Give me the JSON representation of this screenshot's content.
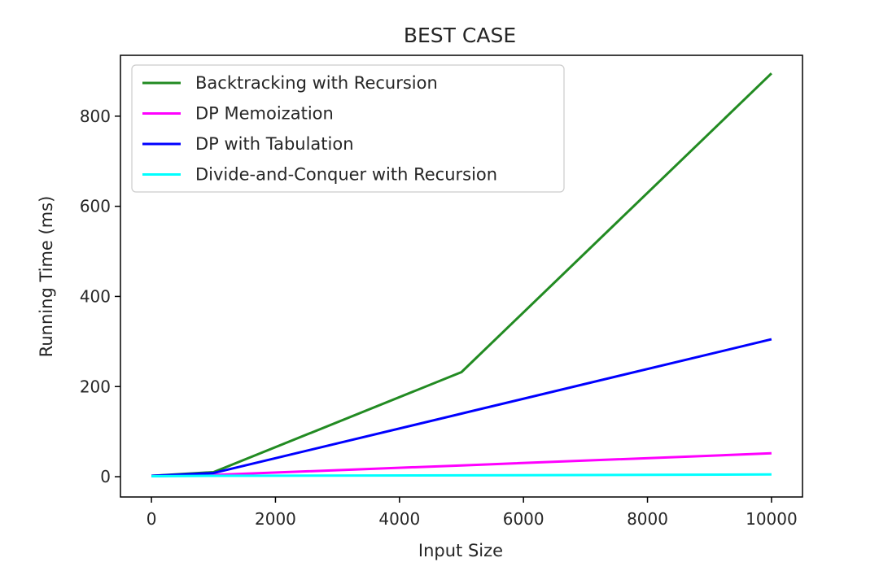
{
  "chart_data": {
    "type": "line",
    "title": "BEST CASE",
    "xlabel": "Input Size",
    "ylabel": "Running Time (ms)",
    "xlim": [
      -500,
      10500
    ],
    "ylim": [
      -45,
      935
    ],
    "xticks": [
      0,
      2000,
      4000,
      6000,
      8000,
      10000
    ],
    "xtick_labels": [
      "0",
      "2000",
      "4000",
      "6000",
      "8000",
      "10000"
    ],
    "yticks": [
      0,
      200,
      400,
      600,
      800
    ],
    "ytick_labels": [
      "0",
      "200",
      "400",
      "600",
      "800"
    ],
    "grid": false,
    "legend_position": "top-left",
    "series": [
      {
        "name": "Backtracking with Recursion",
        "color": "#228b22",
        "x": [
          0,
          1000,
          5000,
          10000
        ],
        "values": [
          2,
          10,
          232,
          895
        ]
      },
      {
        "name": "DP Memoization",
        "color": "#ff00ff",
        "x": [
          0,
          1000,
          5000,
          10000
        ],
        "values": [
          1,
          4,
          25,
          52
        ]
      },
      {
        "name": "DP with Tabulation",
        "color": "#0000ff",
        "x": [
          0,
          1000,
          5000,
          10000
        ],
        "values": [
          2,
          8,
          140,
          305
        ]
      },
      {
        "name": "Divide-and-Conquer with Recursion",
        "color": "#00ffff",
        "x": [
          0,
          1000,
          5000,
          10000
        ],
        "values": [
          1,
          2,
          3,
          5
        ]
      }
    ]
  }
}
